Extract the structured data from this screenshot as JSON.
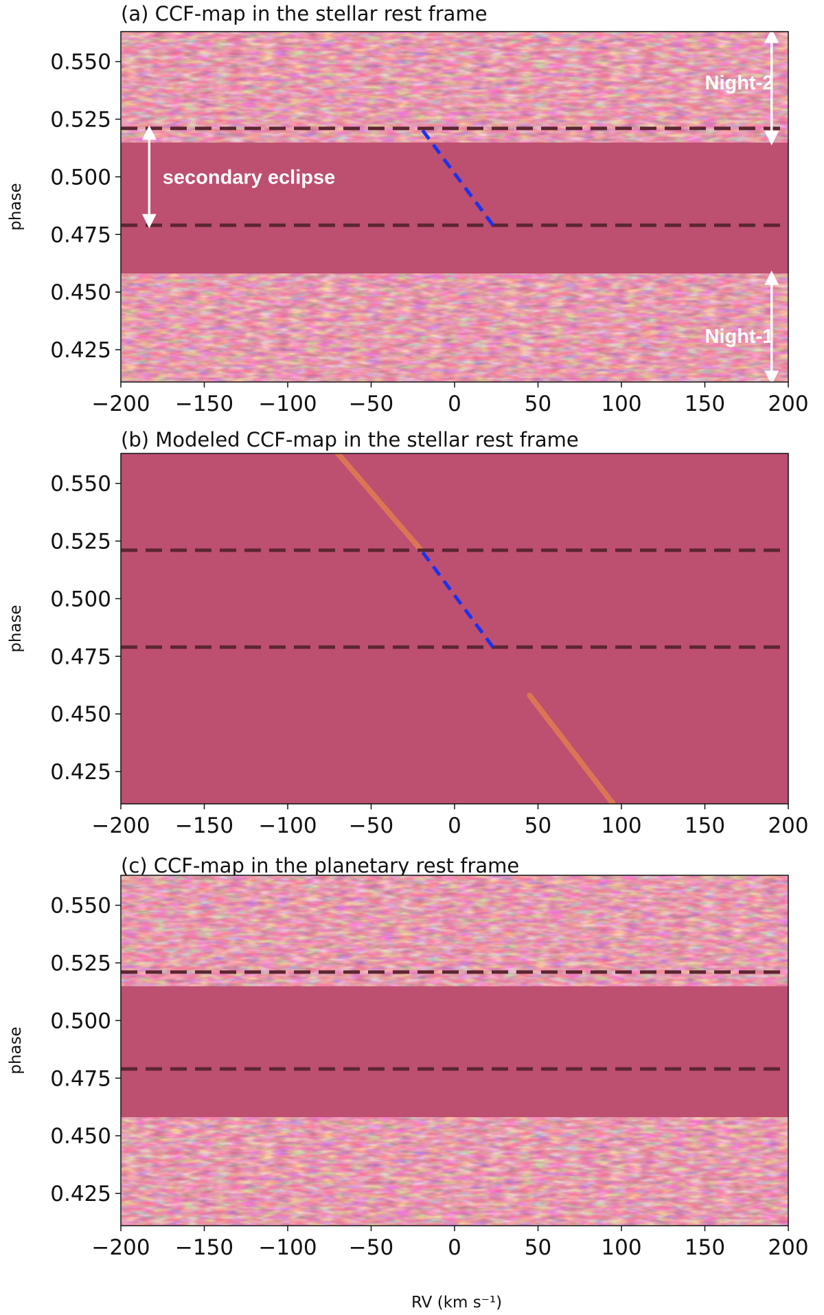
{
  "chart_data": [
    {
      "id": "a",
      "type": "heatmap",
      "title": "(a) CCF-map in the stellar rest frame",
      "xlabel": "",
      "ylabel": "phase",
      "xlim": [
        -200,
        200
      ],
      "ylim": [
        0.411,
        0.563
      ],
      "xticks": [
        -200,
        -150,
        -100,
        -50,
        0,
        50,
        100,
        150,
        200
      ],
      "xtick_labels": [
        "−200",
        "−150",
        "−100",
        "−50",
        "0",
        "50",
        "100",
        "150",
        "200"
      ],
      "yticks": [
        0.425,
        0.45,
        0.475,
        0.5,
        0.525,
        0.55
      ],
      "ytick_labels": [
        "0.425",
        "0.450",
        "0.475",
        "0.500",
        "0.525",
        "0.550"
      ],
      "noise_bands": [
        [
          0.411,
          0.458
        ],
        [
          0.515,
          0.563
        ]
      ],
      "eclipse_lines_phase": [
        0.479,
        0.521
      ],
      "model_track": {
        "color": "#1a33ee",
        "points": [
          [
            23,
            0.479
          ],
          [
            -20,
            0.521
          ]
        ]
      },
      "annotations": [
        {
          "text": "secondary eclipse",
          "arrow_x": -183,
          "arrow_phase": [
            0.479,
            0.521
          ],
          "text_rv": -175,
          "text_phase": 0.5
        },
        {
          "text": "Night-2",
          "arrow_x": 190,
          "arrow_phase": [
            0.515,
            0.563
          ],
          "text_rv": 150,
          "text_phase": 0.541
        },
        {
          "text": "Night-1",
          "arrow_x": 190,
          "arrow_phase": [
            0.411,
            0.458
          ],
          "text_rv": 150,
          "text_phase": 0.431
        }
      ],
      "colors": {
        "background": "#bd4f70",
        "line_dark": "#5b2630"
      }
    },
    {
      "id": "b",
      "type": "heatmap",
      "title": "(b) Modeled CCF-map in the stellar rest frame",
      "xlabel": "",
      "ylabel": "phase",
      "xlim": [
        -200,
        200
      ],
      "ylim": [
        0.411,
        0.563
      ],
      "xticks": [
        -200,
        -150,
        -100,
        -50,
        0,
        50,
        100,
        150,
        200
      ],
      "xtick_labels": [
        "−200",
        "−150",
        "−100",
        "−50",
        "0",
        "50",
        "100",
        "150",
        "200"
      ],
      "yticks": [
        0.425,
        0.45,
        0.475,
        0.5,
        0.525,
        0.55
      ],
      "ytick_labels": [
        "0.425",
        "0.450",
        "0.475",
        "0.500",
        "0.525",
        "0.550"
      ],
      "noise_bands": [],
      "eclipse_lines_phase": [
        0.479,
        0.521
      ],
      "model_track": {
        "color": "#1a33ee",
        "points": [
          [
            23,
            0.479
          ],
          [
            -20,
            0.521
          ]
        ]
      },
      "signal_streaks": [
        {
          "color": "#e5824d",
          "points": [
            [
              -70,
              0.563
            ],
            [
              -20,
              0.521
            ]
          ]
        },
        {
          "color": "#e5824d",
          "points": [
            [
              45,
              0.458
            ],
            [
              95,
              0.411
            ]
          ]
        }
      ],
      "annotations": [],
      "colors": {
        "background": "#bd4f70",
        "line_dark": "#5b2630"
      }
    },
    {
      "id": "c",
      "type": "heatmap",
      "title": "(c) CCF-map in the planetary rest frame",
      "xlabel": "RV (km s⁻¹)",
      "ylabel": "phase",
      "xlim": [
        -200,
        200
      ],
      "ylim": [
        0.411,
        0.563
      ],
      "xticks": [
        -200,
        -150,
        -100,
        -50,
        0,
        50,
        100,
        150,
        200
      ],
      "xtick_labels": [
        "−200",
        "−150",
        "−100",
        "−50",
        "0",
        "50",
        "100",
        "150",
        "200"
      ],
      "yticks": [
        0.425,
        0.45,
        0.475,
        0.5,
        0.525,
        0.55
      ],
      "ytick_labels": [
        "0.425",
        "0.450",
        "0.475",
        "0.500",
        "0.525",
        "0.550"
      ],
      "noise_bands": [
        [
          0.411,
          0.458
        ],
        [
          0.515,
          0.563
        ]
      ],
      "eclipse_lines_phase": [
        0.479,
        0.521
      ],
      "annotations": [],
      "colors": {
        "background": "#bd4f70",
        "line_dark": "#5b2630"
      }
    }
  ]
}
